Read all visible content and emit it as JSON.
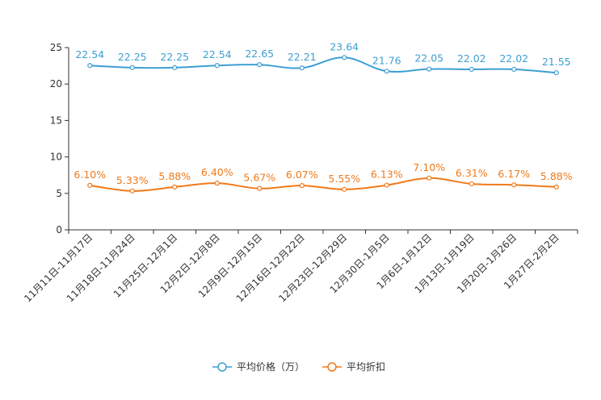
{
  "chart_data": {
    "type": "line",
    "title": "",
    "xlabel": "",
    "ylabel": "",
    "ylim": [
      0,
      25
    ],
    "yticks": [
      0,
      5,
      10,
      15,
      20,
      25
    ],
    "grid": false,
    "legend_position": "bottom-center",
    "categories": [
      "11月11日-11月17日",
      "11月18日-11月24日",
      "11月25日-12月1日",
      "12月2日-12月8日",
      "12月9日-12月15日",
      "12月16日-12月22日",
      "12月23日-12月29日",
      "12月30日-1月5日",
      "1月6日-1月12日",
      "1月13日-1月19日",
      "1月20日-1月26日",
      "1月27日-2月2日"
    ],
    "series": [
      {
        "name": "平均价格（万）",
        "color": "#3d9fd3",
        "values": [
          22.54,
          22.25,
          22.25,
          22.54,
          22.65,
          22.21,
          23.64,
          21.76,
          22.05,
          22.02,
          22.02,
          21.55
        ],
        "labels": [
          "22.54",
          "22.25",
          "22.25",
          "22.54",
          "22.65",
          "22.21",
          "23.64",
          "21.76",
          "22.05",
          "22.02",
          "22.02",
          "21.55"
        ]
      },
      {
        "name": "平均折扣",
        "color": "#f07a1a",
        "values": [
          6.1,
          5.33,
          5.88,
          6.4,
          5.67,
          6.07,
          5.55,
          6.13,
          7.1,
          6.31,
          6.17,
          5.88
        ],
        "labels": [
          "6.10%",
          "5.33%",
          "5.88%",
          "6.40%",
          "5.67%",
          "6.07%",
          "5.55%",
          "6.13%",
          "7.10%",
          "6.31%",
          "6.17%",
          "5.88%"
        ]
      }
    ]
  }
}
